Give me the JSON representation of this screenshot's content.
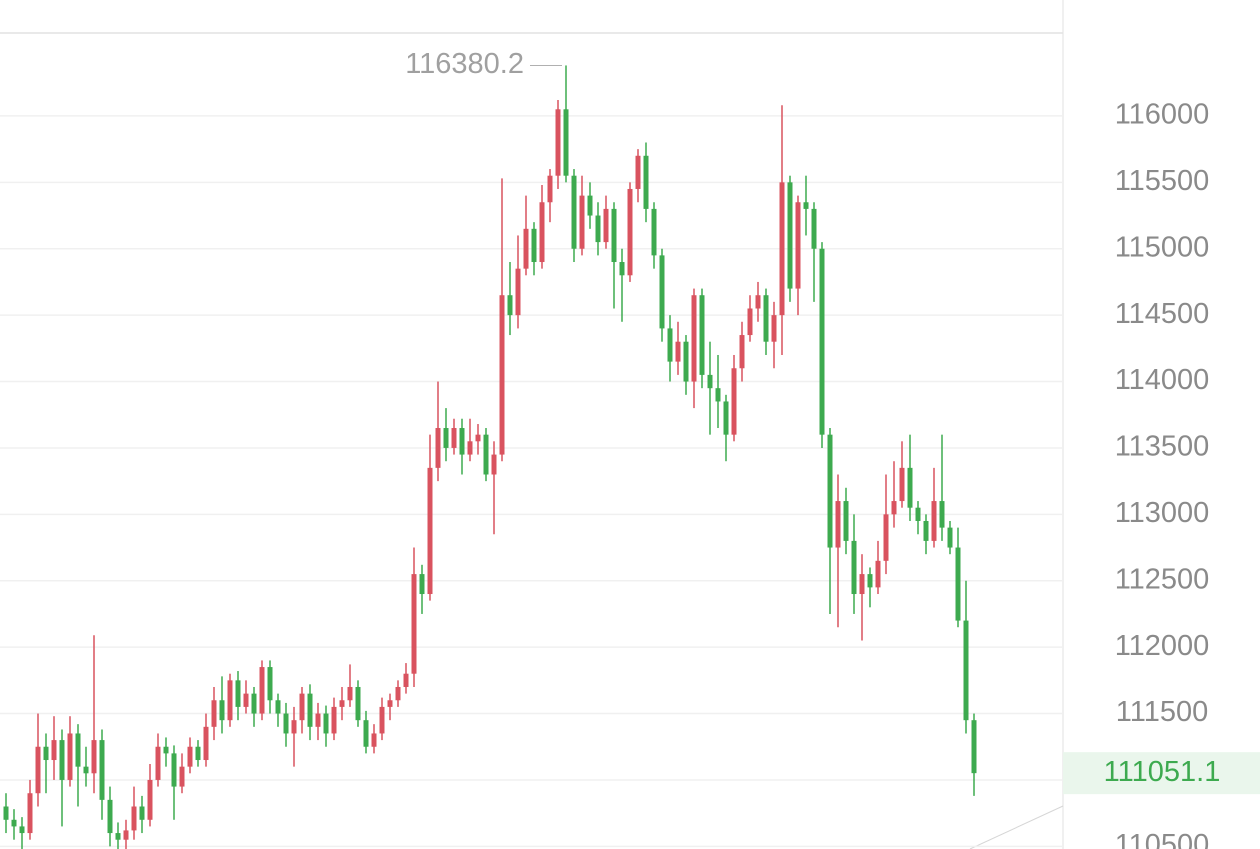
{
  "chart_data": {
    "type": "candlestick",
    "up_color": "#d9535f",
    "down_color": "#3daa4f",
    "ylim": [
      110480,
      116873
    ],
    "yticks": [
      110500,
      111000,
      111500,
      112000,
      112500,
      113000,
      113500,
      114000,
      114500,
      115000,
      115500,
      116000
    ],
    "grid": true,
    "max_label": 116380.2,
    "last_price": 111051.1,
    "open": [
      110800,
      110700,
      110650,
      110600,
      110900,
      111250,
      111150,
      111300,
      111000,
      111350,
      111100,
      111050,
      111300,
      110850,
      110600,
      110550,
      110620,
      110800,
      110700,
      111000,
      111250,
      111200,
      110950,
      111100,
      111250,
      111150,
      111400,
      111600,
      111450,
      111750,
      111550,
      111650,
      111500,
      111850,
      111600,
      111500,
      111350,
      111450,
      111650,
      111400,
      111500,
      111350,
      111550,
      111600,
      111700,
      111450,
      111250,
      111350,
      111550,
      111600,
      111700,
      111800,
      112550,
      112400,
      113350,
      113650,
      113500,
      113650,
      113450,
      113550,
      113600,
      113300,
      113450,
      114650,
      114500,
      114850,
      115150,
      114900,
      115350,
      115550,
      116050,
      115550,
      115000,
      115400,
      115250,
      115050,
      115300,
      114900,
      114800,
      115450,
      115700,
      115300,
      114950,
      114400,
      114150,
      114300,
      114000,
      114650,
      114050,
      113950,
      113850,
      113600,
      114100,
      114350,
      114550,
      114650,
      114300,
      114500,
      115500,
      114700,
      115350,
      115300,
      115000,
      113600,
      112750,
      113100,
      112800,
      112400,
      112550,
      112450,
      112650,
      113000,
      113100,
      113350,
      113050,
      112950,
      112800,
      113100,
      112900,
      112750,
      112200,
      111450
    ],
    "high": [
      110900,
      110780,
      110720,
      111000,
      111500,
      111350,
      111480,
      111380,
      111480,
      111420,
      111250,
      112090,
      111380,
      110950,
      110680,
      110700,
      110950,
      110880,
      111120,
      111350,
      111320,
      111260,
      111200,
      111320,
      111300,
      111500,
      111700,
      111780,
      111800,
      111820,
      111750,
      111700,
      111900,
      111900,
      111650,
      111580,
      111550,
      111700,
      111720,
      111580,
      111560,
      111620,
      111700,
      111870,
      111750,
      111520,
      111420,
      111620,
      111650,
      111750,
      111880,
      112750,
      112620,
      113600,
      114000,
      113800,
      113720,
      113720,
      113720,
      113680,
      113650,
      113550,
      115530,
      114900,
      115100,
      115400,
      115200,
      115480,
      115600,
      116120,
      116380.2,
      115600,
      115550,
      115500,
      115350,
      115400,
      115350,
      115000,
      115500,
      115750,
      115800,
      115350,
      115000,
      114500,
      114450,
      114350,
      114700,
      114700,
      114300,
      114200,
      113900,
      114200,
      114450,
      114650,
      114750,
      114700,
      114600,
      116080,
      115550,
      115400,
      115550,
      115350,
      115050,
      113650,
      113300,
      113200,
      113000,
      112700,
      112600,
      112800,
      113300,
      113400,
      113550,
      113600,
      113100,
      113000,
      113350,
      113600,
      112950,
      112900,
      112500,
      111500
    ],
    "low": [
      110600,
      110550,
      110480,
      110550,
      110800,
      110900,
      111000,
      110650,
      110950,
      110800,
      110950,
      110900,
      110700,
      110500,
      110480,
      110480,
      110550,
      110600,
      110650,
      110950,
      111100,
      110700,
      110900,
      111050,
      111100,
      111100,
      111300,
      111350,
      111400,
      111450,
      111500,
      111400,
      111450,
      111500,
      111400,
      111250,
      111100,
      111350,
      111300,
      111300,
      111250,
      111300,
      111450,
      111550,
      111400,
      111200,
      111200,
      111300,
      111450,
      111550,
      111650,
      111700,
      112250,
      112350,
      113250,
      113400,
      113450,
      113300,
      113400,
      113450,
      113250,
      112850,
      113400,
      114350,
      114400,
      114800,
      114800,
      114850,
      115200,
      115450,
      115500,
      114900,
      114950,
      115150,
      114950,
      115000,
      114550,
      114450,
      114750,
      115350,
      115200,
      114850,
      114300,
      114000,
      114050,
      113900,
      113800,
      113950,
      113600,
      113650,
      113400,
      113550,
      114000,
      114300,
      114450,
      114200,
      114100,
      114200,
      114600,
      114500,
      115100,
      114600,
      113500,
      112250,
      112150,
      112700,
      112250,
      112050,
      112300,
      112400,
      112550,
      112900,
      113050,
      112950,
      112850,
      112700,
      112750,
      112800,
      112700,
      112150,
      111350,
      110880
    ],
    "close": [
      110700,
      110650,
      110600,
      110900,
      111250,
      111150,
      111300,
      111000,
      111350,
      111100,
      111050,
      111300,
      110850,
      110600,
      110550,
      110620,
      110800,
      110700,
      111000,
      111250,
      111200,
      110950,
      111100,
      111250,
      111150,
      111400,
      111600,
      111450,
      111750,
      111550,
      111650,
      111500,
      111850,
      111600,
      111500,
      111350,
      111450,
      111650,
      111400,
      111500,
      111350,
      111550,
      111600,
      111700,
      111450,
      111250,
      111350,
      111550,
      111600,
      111700,
      111800,
      112550,
      112400,
      113350,
      113650,
      113500,
      113650,
      113450,
      113550,
      113600,
      113300,
      113450,
      114650,
      114500,
      114850,
      115150,
      114900,
      115350,
      115550,
      116050,
      115550,
      115000,
      115400,
      115250,
      115050,
      115300,
      114900,
      114800,
      115450,
      115700,
      115300,
      114950,
      114400,
      114150,
      114300,
      114000,
      114650,
      114050,
      113950,
      113850,
      113600,
      114100,
      114350,
      114550,
      114650,
      114300,
      114500,
      115500,
      114700,
      115350,
      115300,
      115000,
      113600,
      112750,
      113100,
      112800,
      112400,
      112550,
      112450,
      112650,
      113000,
      113100,
      113350,
      113050,
      112950,
      112800,
      113100,
      112900,
      112750,
      112200,
      111450,
      111051.1
    ]
  }
}
